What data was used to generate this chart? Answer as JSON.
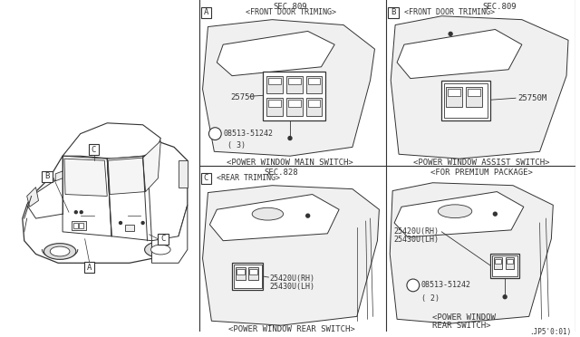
{
  "background_color": "#ffffff",
  "line_color": "#333333",
  "fig_width": 6.4,
  "fig_height": 3.72,
  "dpi": 100,
  "A_sec": "SEC.809",
  "A_trim": "<FRONT DOOR TRIMING>",
  "A_part": "25750",
  "A_screw": "08513-51242",
  "A_screw_count": "( 3)",
  "A_caption": "<POWER WINDOW MAIN SWITCH>",
  "B_sec": "SEC.809",
  "B_trim": "<FRONT DOOR TRIMING>",
  "B_part": "25750M",
  "B_caption": "<POWER WINDOW ASSIST SWITCH>",
  "B_premium": "<FOR PREMIUM PACKAGE>",
  "C_sec": "SEC.828",
  "C_trim": "<REAR TRIMING>",
  "C_part_rh": "25420U(RH)",
  "C_part_lh": "25430U(LH)",
  "C_caption": "<POWER WINDOW REAR SWITCH>",
  "D_part_rh": "25420U(RH)",
  "D_part_lh": "25430U(LH)",
  "D_screw": "08513-51242",
  "D_screw_count": "( 2)",
  "D_cap1": "<POWER WINDOW",
  "D_cap2": "REAR SWITCH>",
  "D_ref": ".JP5'0:01)"
}
